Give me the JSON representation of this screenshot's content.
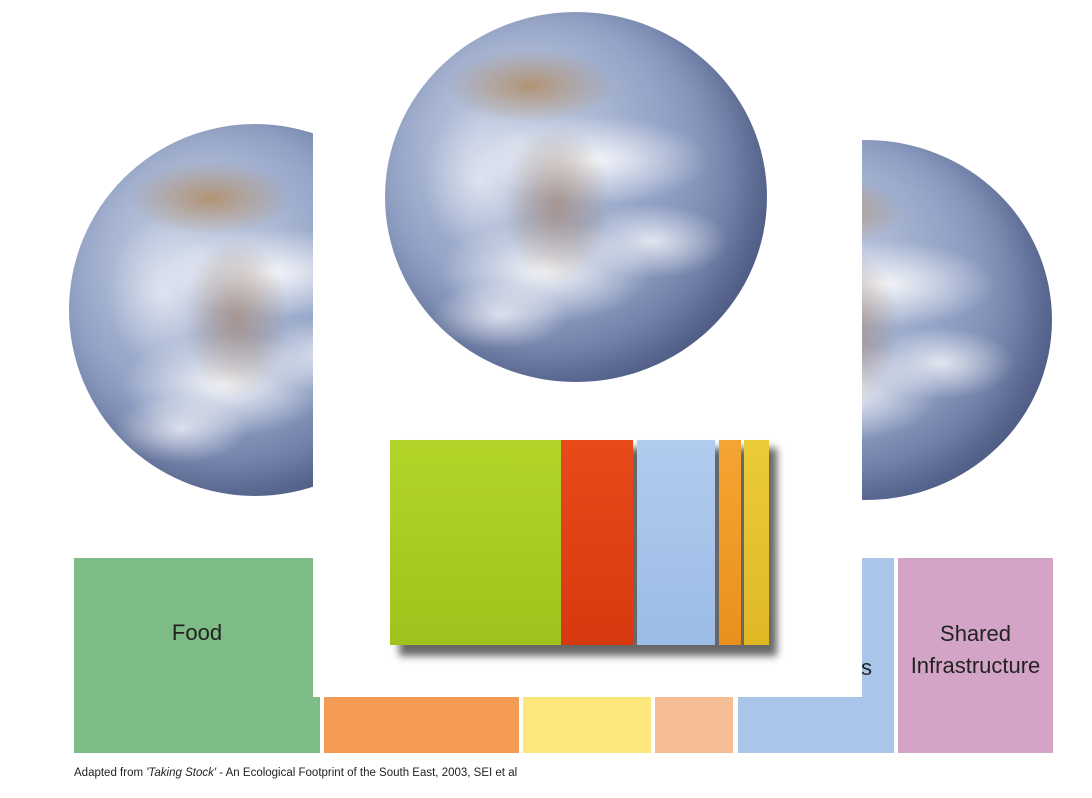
{
  "blocks": {
    "food": {
      "label": "Food",
      "color": "#7dbb87"
    },
    "orange": {
      "color": "#f39b55"
    },
    "yellow": {
      "color": "#fde77a"
    },
    "peach": {
      "color": "#f4bd94"
    },
    "blue": {
      "label_fragment": "s",
      "color": "#a9c5ea"
    },
    "shared": {
      "label_line1": "Shared",
      "label_line2": "Infrastructure",
      "color": "#d4a4c7"
    }
  },
  "stacked_bar": {
    "segments": [
      {
        "name": "green",
        "color": "#a9cb22"
      },
      {
        "name": "red",
        "color": "#e03e14"
      },
      {
        "name": "light-blue",
        "color": "#a4c2e9"
      },
      {
        "name": "orange",
        "color": "#f19a25"
      },
      {
        "name": "yellow",
        "color": "#e5c12e"
      }
    ]
  },
  "caption": {
    "prefix": "Adapted from ",
    "title": "'Taking Stock'",
    "suffix": " - An Ecological Footprint of the South East, 2003, SEI et al"
  }
}
